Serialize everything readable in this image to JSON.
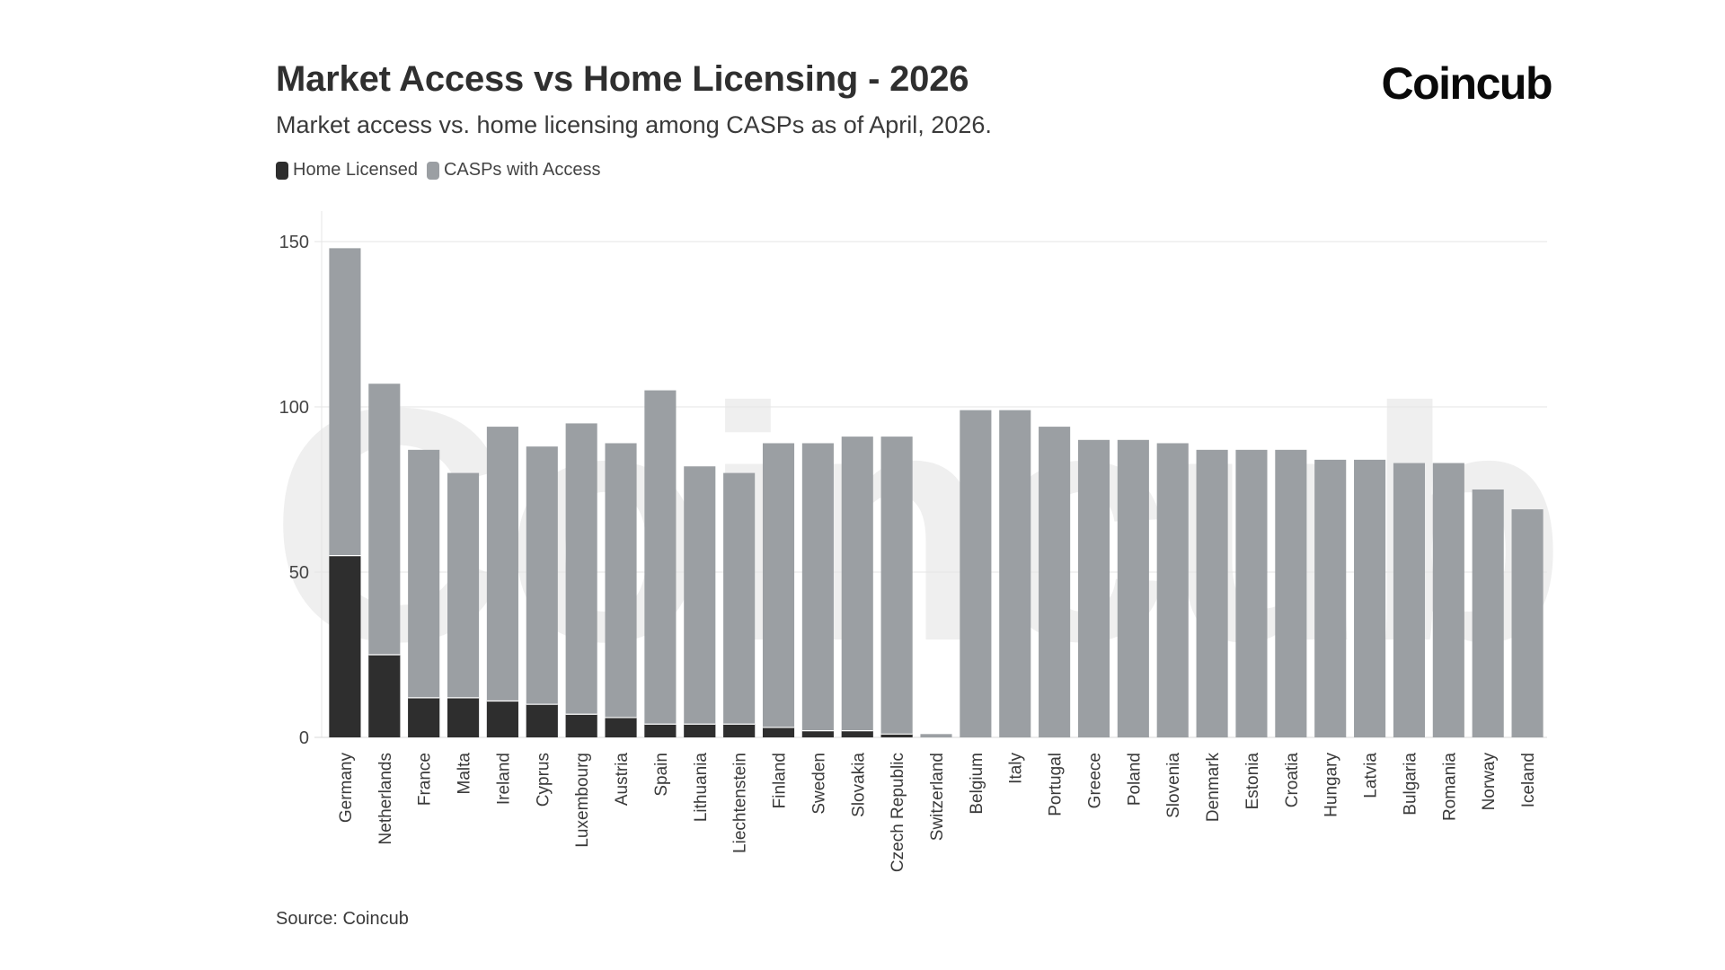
{
  "header": {
    "title": "Market Access vs Home Licensing - 2026",
    "subtitle": "Market access vs. home licensing among CASPs as of April, 2026.",
    "brand": "Coincub"
  },
  "legend": {
    "items": [
      {
        "label": "Home Licensed",
        "color": "#2e2e2e"
      },
      {
        "label": "CASPs with Access",
        "color": "#9b9fa3"
      }
    ]
  },
  "footer": {
    "source": "Source: Coincub"
  },
  "watermark": "Coincub",
  "chart_data": {
    "type": "bar",
    "stacked": false,
    "overlay": true,
    "categories": [
      "Germany",
      "Netherlands",
      "France",
      "Malta",
      "Ireland",
      "Cyprus",
      "Luxembourg",
      "Austria",
      "Spain",
      "Lithuania",
      "Liechtenstein",
      "Finland",
      "Sweden",
      "Slovakia",
      "Czech Republic",
      "Switzerland",
      "Belgium",
      "Italy",
      "Portugal",
      "Greece",
      "Poland",
      "Slovenia",
      "Denmark",
      "Estonia",
      "Croatia",
      "Hungary",
      "Latvia",
      "Bulgaria",
      "Romania",
      "Norway",
      "Iceland"
    ],
    "series": [
      {
        "name": "CASPs with Access",
        "color": "#9b9fa3",
        "values": [
          148,
          107,
          87,
          80,
          94,
          88,
          95,
          89,
          105,
          82,
          80,
          89,
          89,
          91,
          91,
          1,
          99,
          99,
          94,
          90,
          90,
          89,
          87,
          87,
          87,
          84,
          84,
          83,
          83,
          75,
          69
        ]
      },
      {
        "name": "Home Licensed",
        "color": "#2e2e2e",
        "values": [
          55,
          25,
          12,
          12,
          11,
          10,
          7,
          6,
          4,
          4,
          4,
          3,
          2,
          2,
          1,
          0,
          0,
          0,
          0,
          0,
          0,
          0,
          0,
          0,
          0,
          0,
          0,
          0,
          0,
          0,
          0
        ]
      }
    ],
    "yticks": [
      0,
      50,
      100,
      150
    ],
    "ylim": [
      0,
      160
    ],
    "grid": true,
    "legend_position": "top-left"
  }
}
